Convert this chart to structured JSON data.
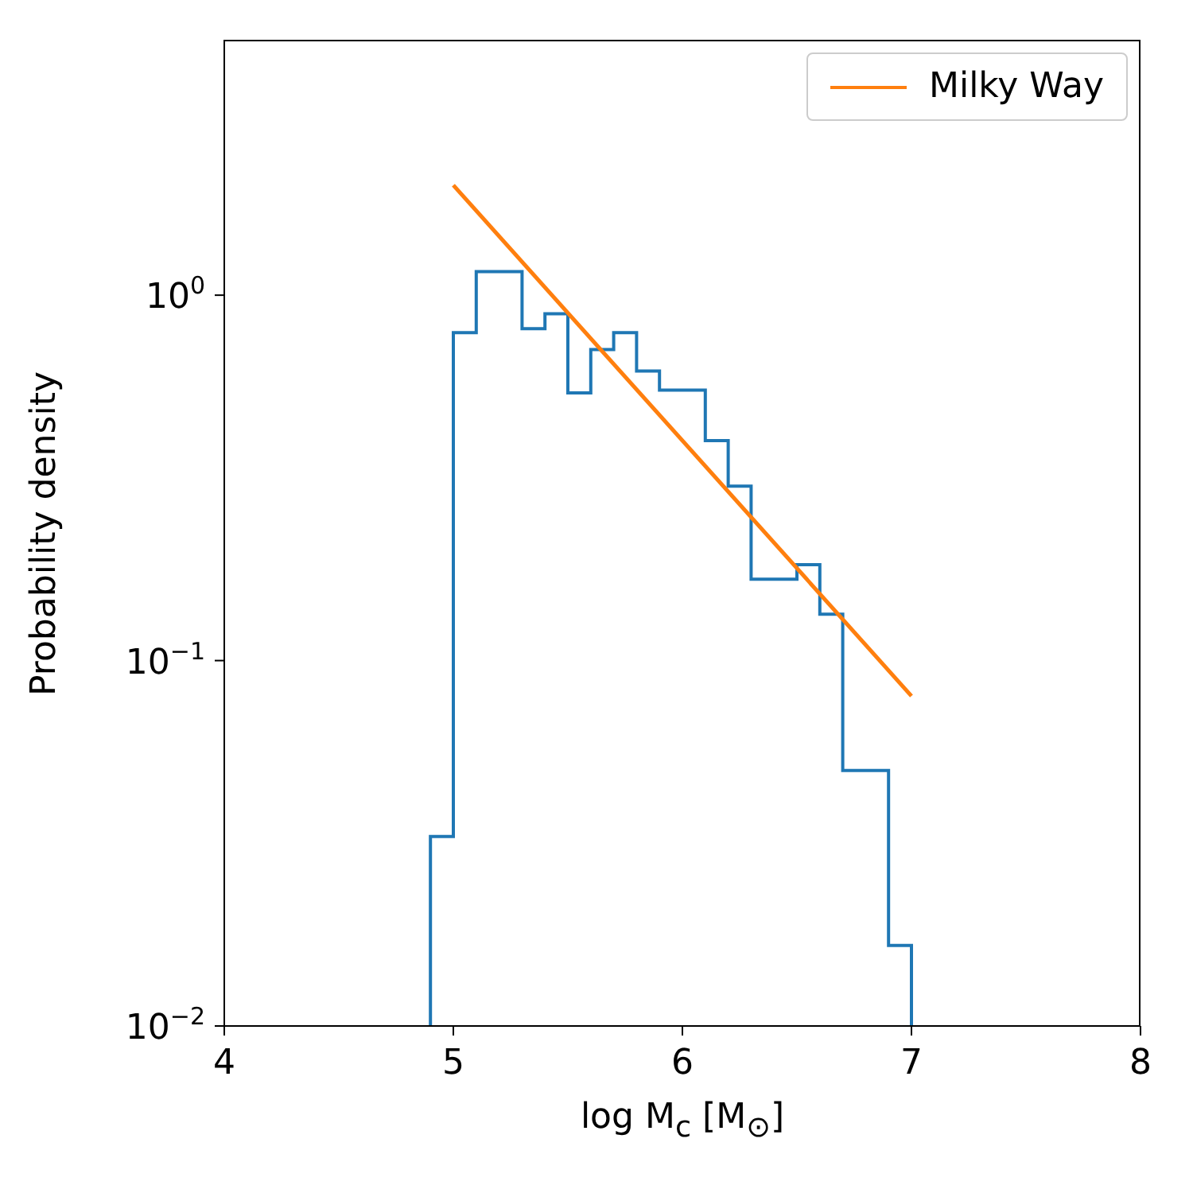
{
  "chart_data": {
    "type": "histogram",
    "xlabel": "log M$_{c}$ [M$_{⊙}$]",
    "ylabel": "Probability density",
    "bins": [
      4.9,
      5.0,
      5.1,
      5.2,
      5.3,
      5.4,
      5.5,
      5.6,
      5.7,
      5.8,
      5.9,
      6.0,
      6.1,
      6.2,
      6.3,
      6.4,
      6.5,
      6.6,
      6.7,
      6.8,
      6.9,
      7.0
    ],
    "series": [
      {
        "color": "#1f77b4",
        "values": [
          0.033,
          0.79,
          1.16,
          1.16,
          0.81,
          0.89,
          0.54,
          0.71,
          0.79,
          0.62,
          0.55,
          0.55,
          0.4,
          0.3,
          0.167,
          0.167,
          0.183,
          0.134,
          0.05,
          0.05,
          0.0166
        ]
      },
      {
        "type": "line",
        "name": "Milky Way",
        "color": "#ff7f0e",
        "x": [
          5,
          7
        ],
        "values": [
          2.0,
          0.08
        ]
      }
    ],
    "xlim": [
      4,
      8
    ],
    "xticks": [
      4,
      5,
      6,
      7,
      8
    ],
    "ylim": [
      0.01,
      5
    ],
    "yticks": [
      {
        "value": 0.01,
        "label": "10$^{−2}$"
      },
      {
        "value": 0.1,
        "label": "10$^{−1}$"
      },
      {
        "value": 1,
        "label": "10$^{0}$"
      }
    ],
    "log": true,
    "grid": false,
    "legend": "top right"
  }
}
